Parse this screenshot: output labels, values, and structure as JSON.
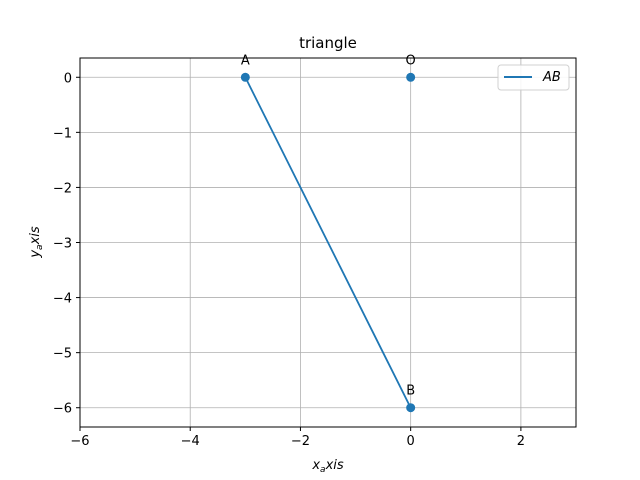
{
  "chart_data": {
    "type": "line",
    "title": "triangle",
    "xlabel_base": "x",
    "xlabel_sub": "a",
    "xlabel_rest": "xis",
    "ylabel_base": "y",
    "ylabel_sub": "a",
    "ylabel_rest": "xis",
    "xlim": [
      -6,
      3
    ],
    "ylim": [
      -6.35,
      0.35
    ],
    "xticks": [
      -6,
      -4,
      -2,
      0,
      2
    ],
    "xtick_labels": [
      "−6",
      "−4",
      "−2",
      "0",
      "2"
    ],
    "yticks": [
      0,
      -1,
      -2,
      -3,
      -4,
      -5,
      -6
    ],
    "ytick_labels": [
      "0",
      "−1",
      "−2",
      "−3",
      "−4",
      "−5",
      "−6"
    ],
    "grid": true,
    "legend_position": "top-right",
    "series": [
      {
        "name": "AB",
        "x": [
          -3,
          0
        ],
        "y": [
          0,
          -6
        ],
        "color": "#1f77b4"
      }
    ],
    "points": [
      {
        "label": "A",
        "x": -3,
        "y": 0
      },
      {
        "label": "O",
        "x": 0,
        "y": 0
      },
      {
        "label": "B",
        "x": 0,
        "y": -6
      }
    ],
    "point_color": "#1f77b4"
  }
}
